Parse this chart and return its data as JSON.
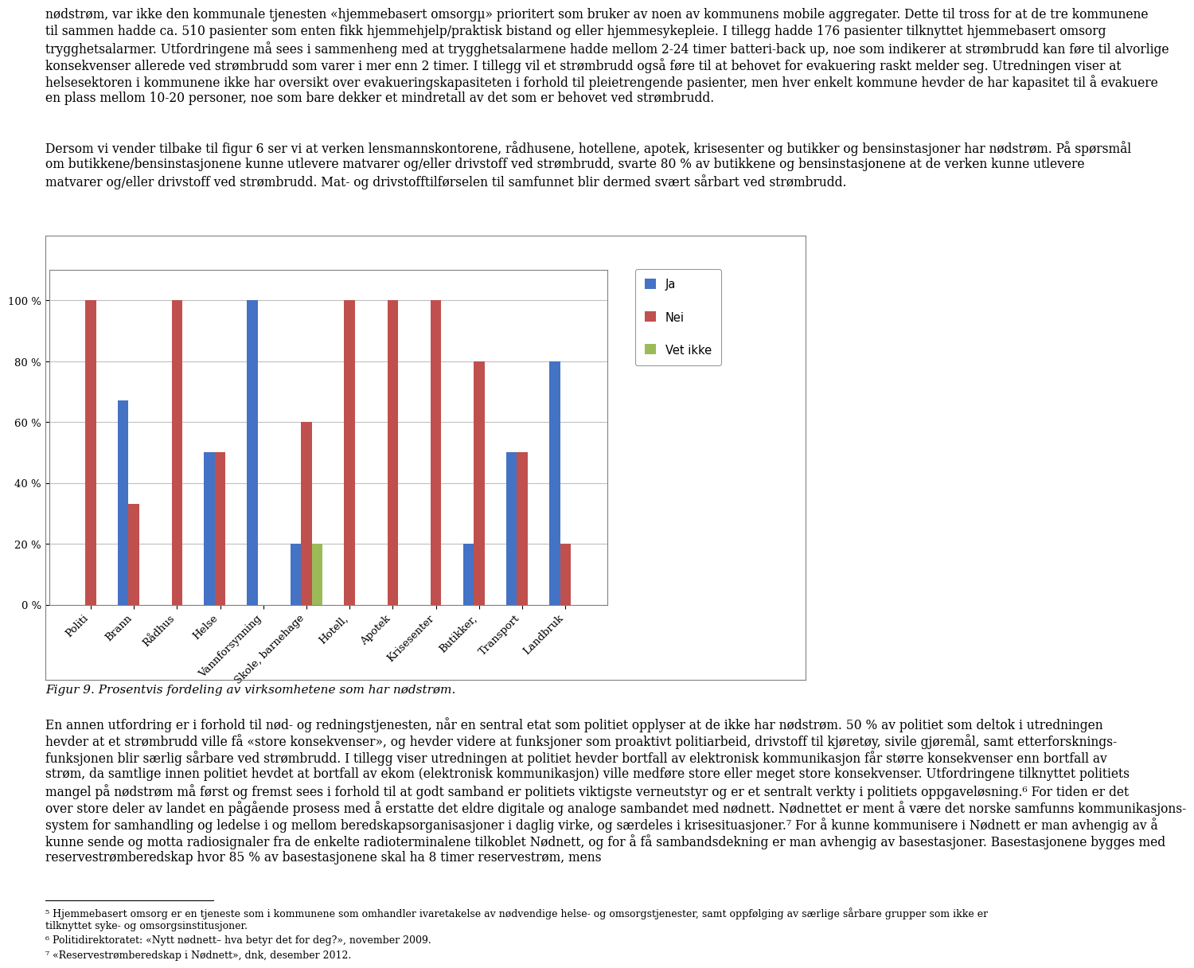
{
  "categories": [
    "Politi",
    "Brann",
    "Rådhus",
    "Helse",
    "Vannforsynning",
    "Skole, barnehage",
    "Hotell,",
    "Apotek",
    "Krisesenter",
    "Butikker,",
    "Transport",
    "Landbruk"
  ],
  "ja": [
    0,
    67,
    0,
    50,
    100,
    20,
    0,
    0,
    0,
    20,
    50,
    80
  ],
  "nei": [
    100,
    33,
    100,
    50,
    0,
    60,
    100,
    100,
    100,
    80,
    50,
    20
  ],
  "vet_ikke": [
    0,
    0,
    0,
    0,
    0,
    20,
    0,
    0,
    0,
    0,
    0,
    0
  ],
  "ja_color": "#4472C4",
  "nei_color": "#C0504D",
  "vet_ikke_color": "#9BBB59",
  "legend_labels": [
    "Ja",
    "Nei",
    "Vet ikke"
  ],
  "ylim": [
    0,
    110
  ],
  "yticks": [
    0,
    20,
    40,
    60,
    80,
    100
  ],
  "ytick_labels": [
    "0 %",
    "20 %",
    "40 %",
    "60 %",
    "80 %",
    "100 %"
  ],
  "figure_caption": "Figur 9. Prosentvis fordeling av virksomhetene som har nødstrøm.",
  "paragraph1_lines": [
    "nødstrøm, var ikke den kommunale tjenesten «hjemmebasert omsorgµ» prioritert som bruker av noen av kommunens mobile aggregater. Dette til tross for at de tre kommunene",
    "til sammen hadde ca. 510 pasienter som enten fikk hjemmehjelp/praktisk bistand og eller hjemmesykepleie. I tillegg hadde 176 pasienter tilknyttet hjemmebasert omsorg",
    "trygghetsalarmer. Utfordringene må sees i sammenheng med at trygghetsalarmene hadde mellom 2-24 timer batteri-back up, noe som indikerer at strømbrudd kan føre til alvorlige",
    "konsekvenser allerede ved strømbrudd som varer i mer enn 2 timer. I tillegg vil et strømbrudd også føre til at behovet for evakuering raskt melder seg. Utredningen viser at",
    "helsesektoren i kommunene ikke har oversikt over evakueringskapasiteten i forhold til pleietrengende pasienter, men hver enkelt kommune hevder de har kapasitet til å evakuere",
    "en plass mellom 10-20 personer, noe som bare dekker et mindretall av det som er behovet ved strømbrudd."
  ],
  "paragraph2_lines": [
    "Dersom vi vender tilbake til figur 6 ser vi at verken lensmannskontorene, rådhusene, hotellene, apotek, krisesenter og butikker og bensinstasjoner har nødstrøm. På spørsmål",
    "om butikkene/bensinstasjonene kunne utlevere matvarer og/eller drivstoff ved strømbrudd, svarte 80 % av butikkene og bensinstasjonene at de verken kunne utlevere",
    "matvarer og/eller drivstoff ved strømbrudd. Mat- og drivstofftilførselen til samfunnet blir dermed svært sårbart ved strømbrudd."
  ],
  "paragraph3_lines": [
    "En annen utfordring er i forhold til nød- og redningstjenesten, når en sentral etat som politiet opplyser at de ikke har nødstrøm. 50 % av politiet som deltok i utredningen",
    "hevder at et strømbrudd ville få «store konsekvenser», og hevder videre at funksjoner som proaktivt politiarbeid, drivstoff til kjøretøy, sivile gjøremål, samt etterforsknings-",
    "funksjonen blir særlig sårbare ved strømbrudd. I tillegg viser utredningen at politiet hevder bortfall av elektronisk kommunikasjon får større konsekvenser enn bortfall av",
    "strøm, da samtlige innen politiet hevdet at bortfall av ekom (elektronisk kommunikasjon) ville medføre store eller meget store konsekvenser. Utfordringene tilknyttet politiets",
    "mangel på nødstrøm må først og fremst sees i forhold til at godt samband er politiets viktigste verneutstyr og er et sentralt verkty i politiets oppgaveløsning.⁶ For tiden er det",
    "over store deler av landet en pågående prosess med å erstatte det eldre digitale og analoge sambandet med nødnett. Nødnettet er ment å være det norske samfunns kommunikasjons-",
    "system for samhandling og ledelse i og mellom beredskapsorganisasjoner i daglig virke, og særdeles i krisesituasjoner.⁷ For å kunne kommunisere i Nødnett er man avhengig av å",
    "kunne sende og motta radiosignaler fra de enkelte radioterminalene tilkoblet Nødnett, og for å få sambandsdekning er man avhengig av basestasjoner. Basestasjonene bygges med",
    "reservestrømberedskap hvor 85 % av basestasjonene skal ha 8 timer reservestrøm, mens"
  ],
  "footnote1": "⁵ Hjemmebasert omsorg er en tjeneste som i kommunene som omhandler ivaretakelse av nødvendige helse- og omsorgstjenester, samt oppfølging av særlige sårbare grupper som ikke er tilknyttet syke- og omsorgsinstitusjoner.",
  "footnote2": "⁶ Politidirektoratet: «Nytt nødnett– hva betyr det for deg?», november 2009.",
  "footnote3": "⁷ «Reservestrømberedskap i Nødnett», dnk, desember 2012.",
  "bar_width": 0.25,
  "bg_color": "#FFFFFF",
  "grid_color": "#C0C0C0",
  "text_color": "#000000",
  "body_fontsize": 11.2,
  "caption_fontsize": 11.0,
  "footnote_fontsize": 9.0
}
